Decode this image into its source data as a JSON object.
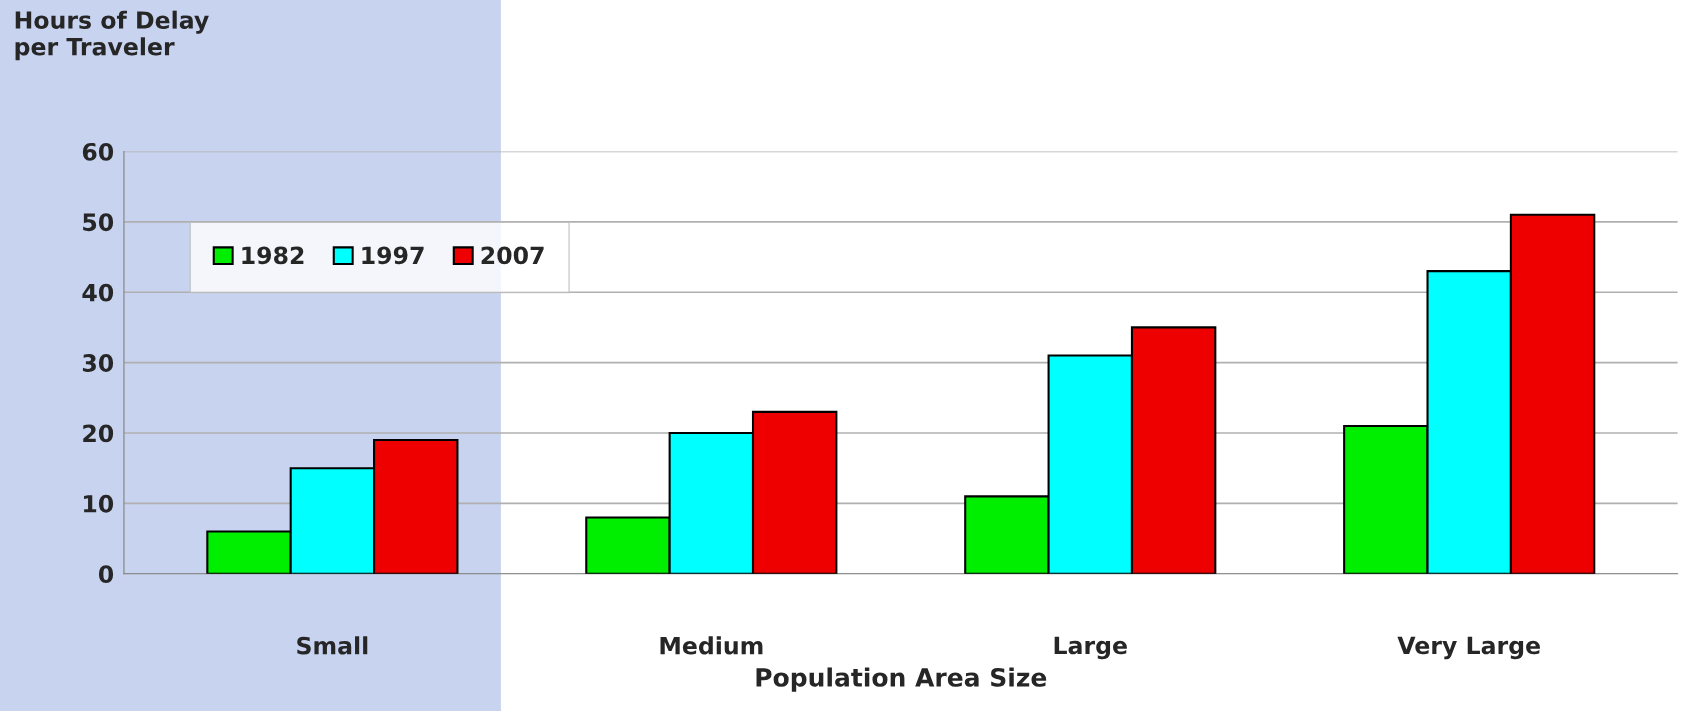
{
  "chart_data": {
    "type": "bar",
    "xlabel": "Population Area Size",
    "ylabel": "Hours of Delay\nper Traveler",
    "categories": [
      "Small",
      "Medium",
      "Large",
      "Very Large"
    ],
    "series": [
      {
        "name": "1982",
        "color": "#00ee00",
        "values": [
          6,
          8,
          11,
          21
        ]
      },
      {
        "name": "1997",
        "color": "#00ffff",
        "values": [
          15,
          20,
          31,
          43
        ]
      },
      {
        "name": "2007",
        "color": "#ee0000",
        "values": [
          19,
          23,
          35,
          51
        ]
      }
    ],
    "ylim": [
      0,
      60
    ],
    "yticks": [
      0,
      10,
      20,
      30,
      40,
      50,
      60
    ],
    "grid": "y",
    "legend": "top left"
  }
}
